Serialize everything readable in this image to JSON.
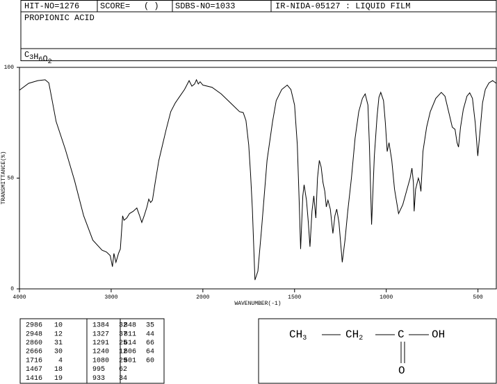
{
  "header": {
    "hit_no": "HIT-NO=1276",
    "score": "SCORE=",
    "score_value": "(  )",
    "sdbs_no": "SDBS-NO=1033",
    "method": "IR-NIDA-05127 : LIQUID FILM",
    "name": "PROPIONIC ACID",
    "formula": [
      [
        "C",
        "3"
      ],
      [
        "H",
        "6"
      ],
      [
        "O",
        "2"
      ]
    ]
  },
  "chart_data": {
    "type": "line",
    "color": "#000000",
    "xlabel": "WAVENUMBER(-1)",
    "ylabel": "TRANSMITTANCE(%)",
    "xlim": [
      4000,
      400
    ],
    "xticks": [
      4000,
      3000,
      2000,
      1500,
      1000,
      500
    ],
    "ylim": [
      0,
      100
    ],
    "yticks": [
      0,
      50,
      100
    ],
    "x": [
      4000,
      3900,
      3800,
      3720,
      3680,
      3650,
      3600,
      3500,
      3400,
      3300,
      3200,
      3100,
      3050,
      3010,
      2986,
      2970,
      2948,
      2920,
      2900,
      2875,
      2860,
      2830,
      2800,
      2760,
      2720,
      2690,
      2666,
      2640,
      2610,
      2590,
      2570,
      2550,
      2520,
      2480,
      2440,
      2400,
      2350,
      2300,
      2250,
      2200,
      2150,
      2120,
      2090,
      2070,
      2050,
      2030,
      2000,
      1950,
      1900,
      1850,
      1800,
      1780,
      1765,
      1750,
      1740,
      1730,
      1716,
      1700,
      1680,
      1650,
      1620,
      1600,
      1570,
      1540,
      1520,
      1500,
      1485,
      1475,
      1467,
      1455,
      1448,
      1435,
      1425,
      1416,
      1405,
      1395,
      1384,
      1375,
      1365,
      1355,
      1345,
      1335,
      1327,
      1318,
      1305,
      1291,
      1280,
      1270,
      1258,
      1240,
      1225,
      1210,
      1190,
      1170,
      1150,
      1130,
      1115,
      1100,
      1092,
      1080,
      1065,
      1050,
      1040,
      1030,
      1015,
      1005,
      995,
      985,
      970,
      955,
      933,
      910,
      890,
      870,
      860,
      852,
      848,
      840,
      825,
      818,
      811,
      800,
      780,
      760,
      730,
      700,
      680,
      660,
      640,
      625,
      614,
      606,
      595,
      580,
      560,
      545,
      530,
      515,
      501,
      490,
      475,
      460,
      440,
      420,
      400
    ],
    "values": [
      89.7,
      92.8,
      94,
      94.4,
      93,
      86.5,
      75.5,
      63,
      49,
      33,
      22,
      17.5,
      16.6,
      15,
      10,
      16,
      12,
      16,
      18,
      33,
      31,
      32,
      34,
      35,
      36.5,
      33,
      30,
      33,
      37,
      40.5,
      39,
      40,
      48,
      58,
      65,
      72,
      80,
      84,
      87,
      90,
      94,
      91.5,
      92.5,
      94.4,
      92.5,
      93.5,
      92,
      91,
      88,
      84,
      80,
      79.6,
      76,
      65,
      52,
      36,
      4,
      8,
      27,
      58,
      75.5,
      85,
      90,
      92,
      90,
      83,
      65,
      40,
      18,
      42,
      47,
      40,
      30,
      19,
      35,
      42,
      32,
      50,
      58,
      55,
      48,
      44,
      37,
      40,
      36,
      25,
      33,
      36,
      30,
      12,
      22,
      35,
      50,
      68,
      80,
      86,
      88,
      83,
      65,
      29,
      60,
      78,
      86.5,
      88.7,
      85,
      75,
      62,
      66,
      58,
      45,
      34,
      38,
      44,
      50,
      54.5,
      48,
      35,
      45,
      50,
      48,
      44,
      62,
      73,
      80,
      86,
      88.7,
      87,
      80,
      73,
      72,
      66,
      64,
      73,
      81,
      87,
      88.5,
      86,
      75,
      60,
      70,
      84,
      90,
      93,
      94,
      92.8
    ]
  },
  "peak_table": {
    "columns": [
      [
        [
          2986,
          10
        ],
        [
          2948,
          12
        ],
        [
          2860,
          31
        ],
        [
          2666,
          30
        ],
        [
          1716,
          4
        ],
        [
          1467,
          18
        ],
        [
          1416,
          19
        ]
      ],
      [
        [
          1384,
          32
        ],
        [
          1327,
          37
        ],
        [
          1291,
          25
        ],
        [
          1240,
          12
        ],
        [
          1080,
          29
        ],
        [
          995,
          62
        ],
        [
          933,
          34
        ]
      ],
      [
        [
          848,
          35
        ],
        [
          811,
          44
        ],
        [
          614,
          66
        ],
        [
          606,
          64
        ],
        [
          501,
          60
        ]
      ]
    ]
  },
  "structure": {
    "atoms": [
      [
        "CH",
        "3"
      ],
      [
        "CH",
        "2"
      ],
      [
        "C"
      ],
      [
        "OH"
      ]
    ],
    "carbonyl": "O"
  }
}
